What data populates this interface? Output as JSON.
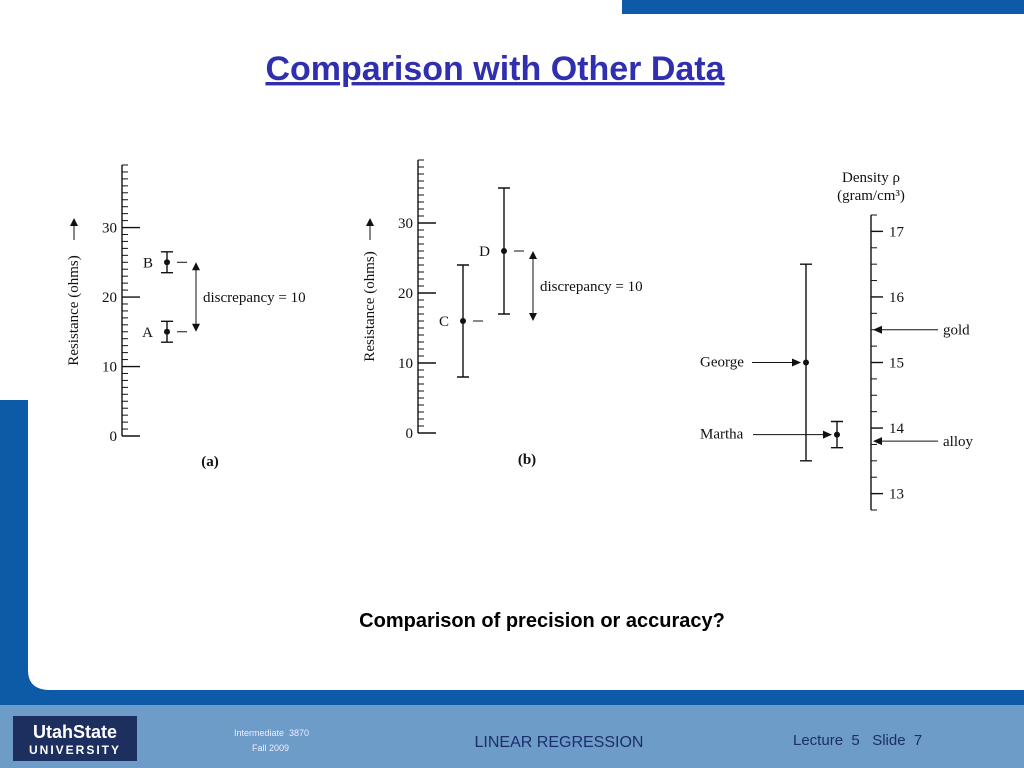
{
  "title": "Comparison with Other Data",
  "caption": "Comparison of precision or accuracy?",
  "chart_data": [
    {
      "type": "errorbar",
      "ylabel": "Resistance (ohms)",
      "label": "(a)",
      "points": [
        {
          "name": "A",
          "value": 15,
          "error": 1.5
        },
        {
          "name": "B",
          "value": 25,
          "error": 1.5
        }
      ],
      "annotation": "discrepancy = 10",
      "ylim": [
        0,
        39
      ],
      "yticks": [
        0,
        10,
        20,
        30
      ]
    },
    {
      "type": "errorbar",
      "ylabel": "Resistance (ohms)",
      "label": "(b)",
      "points": [
        {
          "name": "C",
          "value": 16,
          "error": 8
        },
        {
          "name": "D",
          "value": 26,
          "error": 9
        }
      ],
      "annotation": "discrepancy = 10",
      "ylim": [
        0,
        39
      ],
      "yticks": [
        0,
        10,
        20,
        30
      ]
    },
    {
      "type": "errorbar",
      "ylabel": [
        "Density ρ",
        "(gram/cm³)"
      ],
      "points": [
        {
          "name": "George",
          "value": 15.0,
          "error": 1.5
        },
        {
          "name": "Martha",
          "value": 13.9,
          "error": 0.2
        }
      ],
      "references": [
        {
          "name": "gold",
          "value": 15.5
        },
        {
          "name": "alloy",
          "value": 13.8
        }
      ],
      "ylim": [
        12.75,
        17.25
      ],
      "yticks": [
        13,
        14,
        15,
        16,
        17
      ]
    }
  ],
  "footer": {
    "logo_top": "UtahState",
    "logo_bottom": "UNIVERSITY",
    "course": "Intermediate  3870",
    "term": "Fall 2009",
    "topic": "LINEAR REGRESSION",
    "slide": "Lecture  5   Slide  7"
  }
}
